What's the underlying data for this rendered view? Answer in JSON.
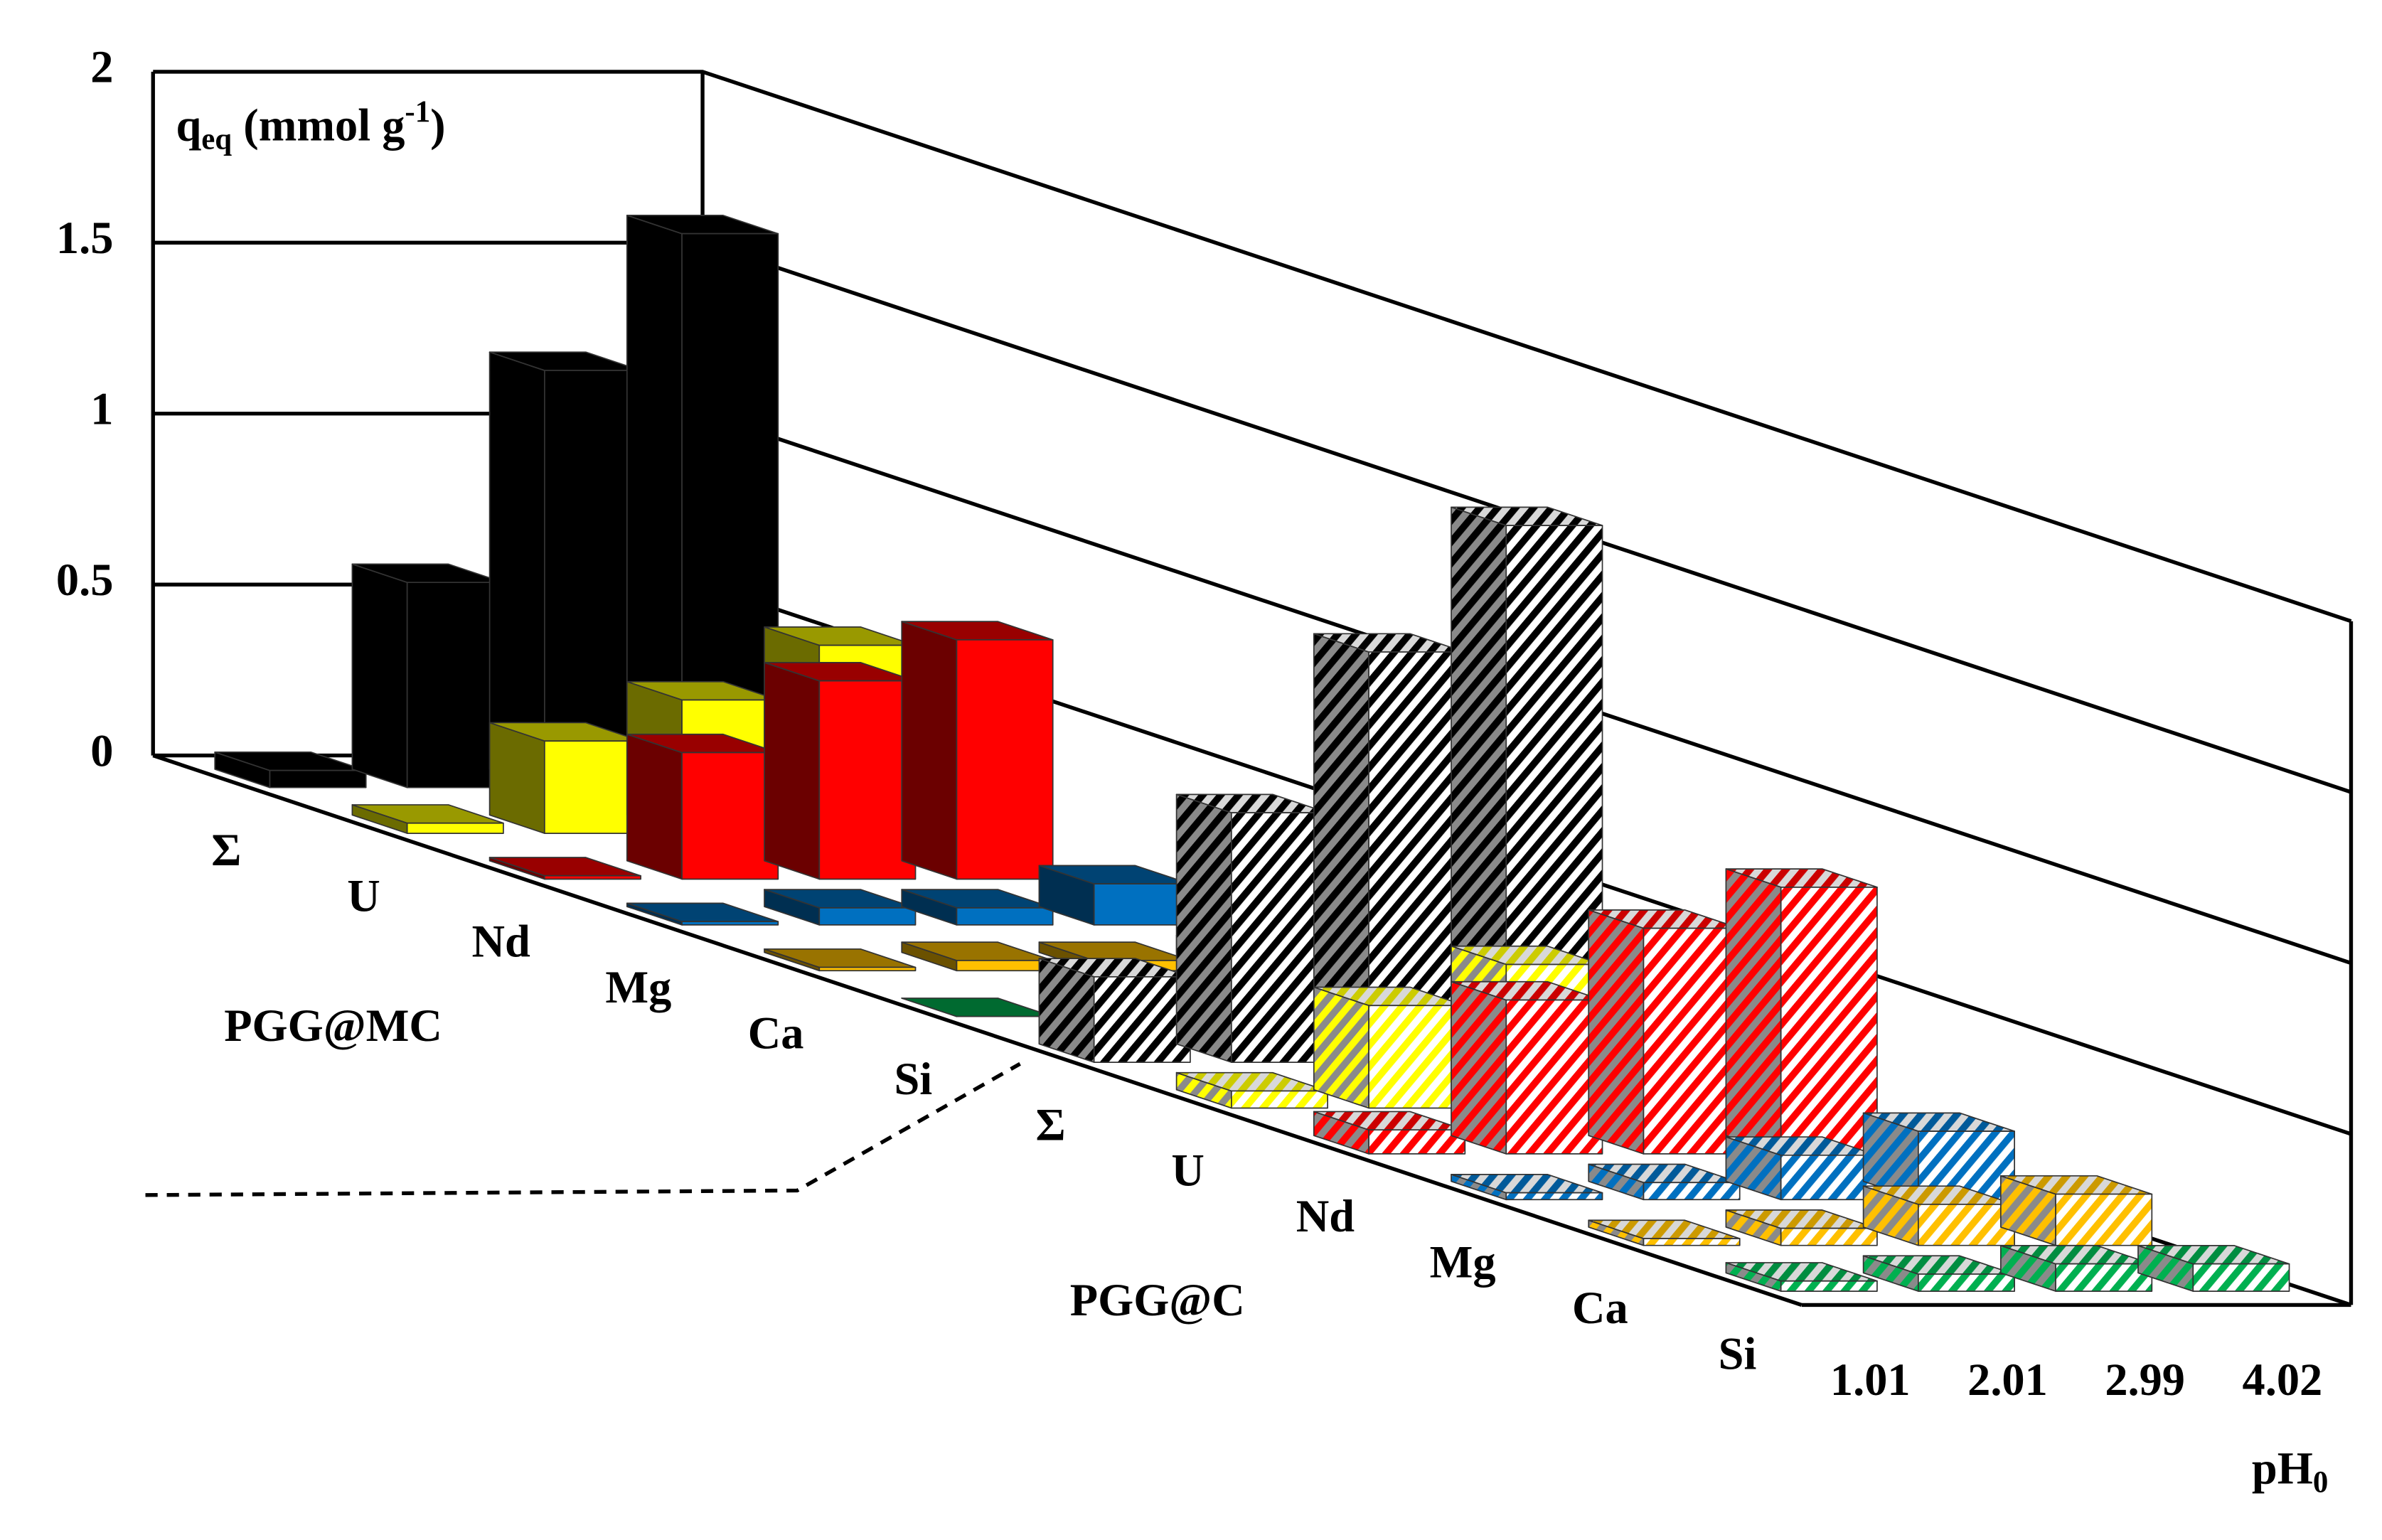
{
  "chart_data": {
    "type": "bar3d",
    "y_label": {
      "main": "q",
      "sub": "eq",
      "rest": " (mmol g",
      "sup": "-1",
      "end": ")"
    },
    "x_label": {
      "main": "pH",
      "sub": "0"
    },
    "categories": [
      "1.01",
      "2.01",
      "2.99",
      "4.02"
    ],
    "ylim": [
      0,
      2
    ],
    "yticks": [
      0,
      0.5,
      1,
      1.5,
      2
    ],
    "grid": true,
    "groups": [
      {
        "name": "PGG@MC",
        "hatched": false,
        "series": [
          {
            "name": "Σ",
            "color": "#000000",
            "values": [
              0.05,
              0.6,
              1.22,
              1.62
            ]
          },
          {
            "name": "U",
            "color": "#ffff00",
            "values": [
              0.03,
              0.27,
              0.39,
              0.55
            ]
          },
          {
            "name": "Nd",
            "color": "#ff0000",
            "values": [
              0.01,
              0.37,
              0.58,
              0.7
            ]
          },
          {
            "name": "Mg",
            "color": "#0070c0",
            "values": [
              0.01,
              0.05,
              0.05,
              0.12
            ]
          },
          {
            "name": "Ca",
            "color": "#ffc000",
            "values": [
              0.01,
              0.03,
              0.03,
              0.05
            ]
          },
          {
            "name": "Si",
            "color": "#00b050",
            "values": [
              0,
              0.01,
              0,
              0
            ]
          }
        ]
      },
      {
        "name": "PGG@C",
        "hatched": true,
        "series": [
          {
            "name": "Σ",
            "color": "#000000",
            "values": [
              0.25,
              0.73,
              1.2,
              1.57
            ]
          },
          {
            "name": "U",
            "color": "#ffff00",
            "values": [
              0.05,
              0.3,
              0.42,
              0.47
            ]
          },
          {
            "name": "Nd",
            "color": "#ff0000",
            "values": [
              0.07,
              0.45,
              0.66,
              0.78
            ]
          },
          {
            "name": "Mg",
            "color": "#0070c0",
            "values": [
              0.02,
              0.05,
              0.13,
              0.2
            ]
          },
          {
            "name": "Ca",
            "color": "#ffc000",
            "values": [
              0.02,
              0.05,
              0.12,
              0.15
            ]
          },
          {
            "name": "Si",
            "color": "#00b050",
            "values": [
              0.03,
              0.05,
              0.08,
              0.08
            ]
          }
        ]
      }
    ]
  }
}
